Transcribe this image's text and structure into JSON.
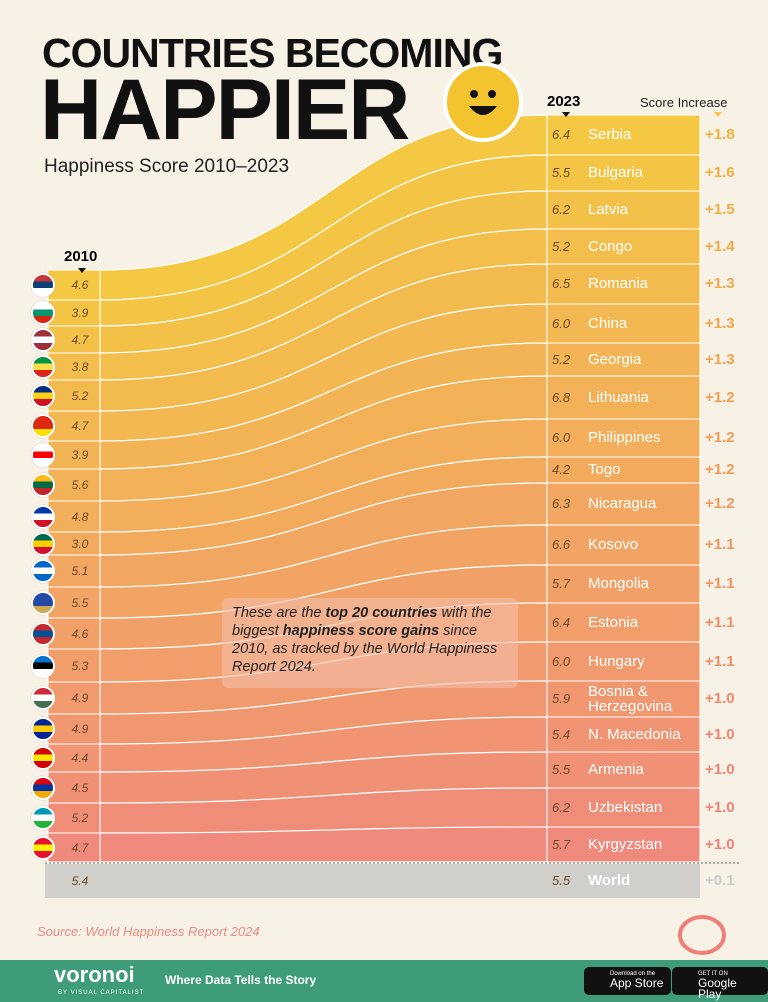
{
  "header": {
    "title_line1": "COUNTRIES BECOMING",
    "title_line2": "HAPPIER",
    "subtitle": "Happiness Score 2010–2023",
    "icon": "smiley-face-icon"
  },
  "chart_data": {
    "type": "sankey-slope",
    "title": "COUNTRIES BECOMING HAPPIER",
    "subtitle": "Happiness Score 2010–2023",
    "left_label": "2010",
    "right_label": "2023",
    "increase_label": "Score Increase",
    "colors": {
      "start": "#f4c842",
      "end": "#ef8a7c",
      "world": "#d0cfcc"
    },
    "left_order": [
      "Serbia",
      "Bulgaria",
      "Latvia",
      "Congo",
      "Romania",
      "China",
      "Georgia",
      "Lithuania",
      "Philippines",
      "Togo",
      "Nicaragua",
      "Kosovo",
      "Mongolia",
      "Estonia",
      "Hungary",
      "Bosnia & Herzegovina",
      "N. Macedonia",
      "Armenia",
      "Uzbekistan",
      "Kyrgyzstan"
    ],
    "left_scores": [
      4.6,
      3.9,
      4.7,
      3.8,
      5.2,
      4.7,
      3.9,
      5.6,
      4.8,
      3.0,
      5.1,
      5.5,
      4.6,
      5.3,
      4.9,
      4.9,
      4.4,
      4.5,
      5.2,
      4.7
    ],
    "right": [
      {
        "country": "Serbia",
        "score_2023": 6.4,
        "increase": "+1.8"
      },
      {
        "country": "Bulgaria",
        "score_2023": 5.5,
        "increase": "+1.6"
      },
      {
        "country": "Latvia",
        "score_2023": 6.2,
        "increase": "+1.5"
      },
      {
        "country": "Congo",
        "score_2023": 5.2,
        "increase": "+1.4"
      },
      {
        "country": "Romania",
        "score_2023": 6.5,
        "increase": "+1.3"
      },
      {
        "country": "China",
        "score_2023": 6.0,
        "increase": "+1.3"
      },
      {
        "country": "Georgia",
        "score_2023": 5.2,
        "increase": "+1.3"
      },
      {
        "country": "Lithuania",
        "score_2023": 6.8,
        "increase": "+1.2"
      },
      {
        "country": "Philippines",
        "score_2023": 6.0,
        "increase": "+1.2"
      },
      {
        "country": "Togo",
        "score_2023": 4.2,
        "increase": "+1.2"
      },
      {
        "country": "Nicaragua",
        "score_2023": 6.3,
        "increase": "+1.2"
      },
      {
        "country": "Kosovo",
        "score_2023": 6.6,
        "increase": "+1.1"
      },
      {
        "country": "Mongolia",
        "score_2023": 5.7,
        "increase": "+1.1"
      },
      {
        "country": "Estonia",
        "score_2023": 6.4,
        "increase": "+1.1"
      },
      {
        "country": "Hungary",
        "score_2023": 6.0,
        "increase": "+1.1"
      },
      {
        "country": "Bosnia & Herzegovina",
        "score_2023": 5.9,
        "increase": "+1.0"
      },
      {
        "country": "N. Macedonia",
        "score_2023": 5.4,
        "increase": "+1.0"
      },
      {
        "country": "Armenia",
        "score_2023": 5.5,
        "increase": "+1.0"
      },
      {
        "country": "Uzbekistan",
        "score_2023": 6.2,
        "increase": "+1.0"
      },
      {
        "country": "Kyrgyzstan",
        "score_2023": 5.7,
        "increase": "+1.0"
      }
    ],
    "world": {
      "country": "World",
      "score_2010": 5.4,
      "score_2023": 5.5,
      "increase": "+0.1"
    }
  },
  "note": {
    "pre": "These are the ",
    "b1": "top 20 countries",
    "mid1": " with the biggest ",
    "b2": "happiness score gains",
    "post": " since 2010, as tracked by the World Happiness Report 2024."
  },
  "source": "Source: World Happiness Report 2024",
  "footer": {
    "brand": "voronoi",
    "brand_sub": "BY VISUAL CAPITALIST",
    "tagline": "Where Data Tells the Story",
    "app_store_small": "Download on the",
    "app_store": "App Store",
    "google_small": "GET IT ON",
    "google": "Google Play"
  }
}
